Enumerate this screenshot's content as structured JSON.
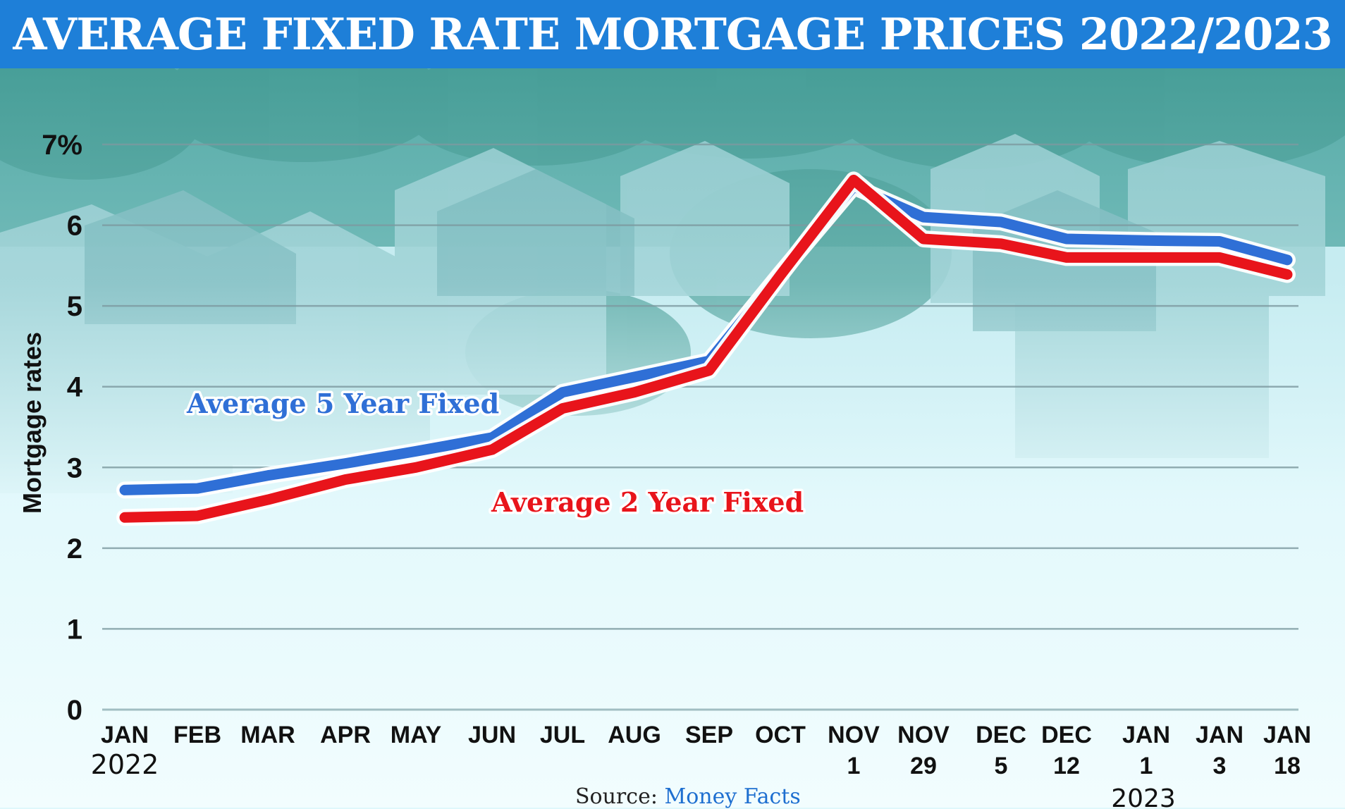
{
  "chart_data": {
    "type": "line",
    "title": "AVERAGE FIXED RATE MORTGAGE PRICES 2022/2023",
    "ylabel": "Mortgage rates",
    "ylim": [
      0,
      7
    ],
    "y_ticks": [
      "0",
      "1",
      "2",
      "3",
      "4",
      "5",
      "6",
      "7%"
    ],
    "categories": [
      [
        "JAN",
        "2022"
      ],
      [
        "FEB"
      ],
      [
        "MAR"
      ],
      [
        "APR"
      ],
      [
        "MAY"
      ],
      [
        "JUN"
      ],
      [
        "JUL"
      ],
      [
        "AUG"
      ],
      [
        "SEP"
      ],
      [
        "OCT"
      ],
      [
        "NOV",
        "1"
      ],
      [
        "NOV",
        "29"
      ],
      [
        "DEC",
        "5"
      ],
      [
        "DEC",
        "12"
      ],
      [
        "JAN",
        "1"
      ],
      [
        "JAN",
        "3"
      ],
      [
        "JAN",
        "18"
      ]
    ],
    "year_label_2023": "2023",
    "grid": true,
    "series": [
      {
        "name": "Average 5 Year Fixed",
        "color": "#2f6fd6",
        "values": [
          2.72,
          2.74,
          2.9,
          3.05,
          3.2,
          3.37,
          3.93,
          4.12,
          4.32,
          5.4,
          6.48,
          6.1,
          6.04,
          5.83,
          5.81,
          5.8,
          5.57
        ]
      },
      {
        "name": "Average 2 Year Fixed",
        "color": "#e8141b",
        "values": [
          2.38,
          2.4,
          2.6,
          2.85,
          3.0,
          3.22,
          3.73,
          3.93,
          4.2,
          5.38,
          6.56,
          5.83,
          5.77,
          5.6,
          5.6,
          5.6,
          5.39
        ]
      }
    ]
  },
  "source": {
    "label": "Source:",
    "name": "Money Facts"
  }
}
